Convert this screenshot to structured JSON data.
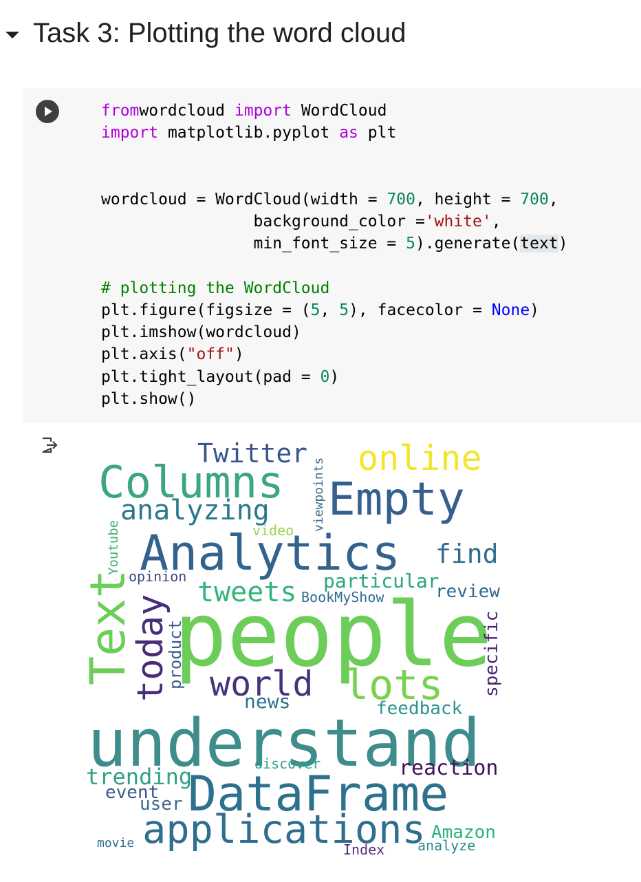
{
  "section": {
    "title": "Task 3: Plotting the word cloud"
  },
  "icons": {
    "toggle": "caret-down-icon",
    "run": "play-icon",
    "output": "output-icon"
  },
  "code_lines": [
    [
      [
        "kw",
        "from"
      ],
      [
        "",
        "wordcloud "
      ],
      [
        "kw",
        "import"
      ],
      [
        "",
        " WordCloud"
      ]
    ],
    [
      [
        "kw",
        "import"
      ],
      [
        "",
        " matplotlib.pyplot "
      ],
      [
        "kw",
        "as"
      ],
      [
        "",
        " plt"
      ]
    ],
    [],
    [],
    [
      [
        "",
        "wordcloud = WordCloud(width = "
      ],
      [
        "num",
        "700"
      ],
      [
        "",
        ", height = "
      ],
      [
        "num",
        "700"
      ],
      [
        "",
        ","
      ]
    ],
    [
      [
        "",
        "                background_color ="
      ],
      [
        "str",
        "'white'"
      ],
      [
        "",
        ","
      ]
    ],
    [
      [
        "",
        "                min_font_size = "
      ],
      [
        "num",
        "5"
      ],
      [
        "",
        ").generate("
      ],
      [
        "hl",
        "text"
      ],
      [
        "",
        ")"
      ]
    ],
    [],
    [
      [
        "cmt",
        "# plotting the WordCloud"
      ]
    ],
    [
      [
        "",
        "plt.figure(figsize = ("
      ],
      [
        "num",
        "5"
      ],
      [
        "",
        ", "
      ],
      [
        "num",
        "5"
      ],
      [
        "",
        "), facecolor = "
      ],
      [
        "const",
        "None"
      ],
      [
        "",
        ")"
      ]
    ],
    [
      [
        "",
        "plt.imshow(wordcloud)"
      ]
    ],
    [
      [
        "",
        "plt.axis("
      ],
      [
        "str",
        "\"off\""
      ],
      [
        "",
        ")"
      ]
    ],
    [
      [
        "",
        "plt.tight_layout(pad = "
      ],
      [
        "num",
        "0"
      ],
      [
        "",
        ")"
      ]
    ],
    [
      [
        "",
        "plt.show()"
      ]
    ]
  ],
  "wordcloud": {
    "words": [
      {
        "text": "people",
        "color": "#6ccd59"
      },
      {
        "text": "understand",
        "color": "#3e8c8c"
      },
      {
        "text": "Analytics",
        "color": "#33638d"
      },
      {
        "text": "Text",
        "color": "#6ccd59"
      },
      {
        "text": "Columns",
        "color": "#3ba67f"
      },
      {
        "text": "Empty",
        "color": "#35608d"
      },
      {
        "text": "DataFrame",
        "color": "#2d718e"
      },
      {
        "text": "applications",
        "color": "#2e6e8e"
      },
      {
        "text": "lots",
        "color": "#7ad151"
      },
      {
        "text": "online",
        "color": "#f4e42c"
      },
      {
        "text": "world",
        "color": "#46327e"
      },
      {
        "text": "today",
        "color": "#472c7a"
      },
      {
        "text": "analyzing",
        "color": "#2a788e"
      },
      {
        "text": "tweets",
        "color": "#33b37b"
      },
      {
        "text": "Twitter",
        "color": "#3a548c"
      },
      {
        "text": "find",
        "color": "#2f6c8e"
      },
      {
        "text": "particular",
        "color": "#2aa583"
      },
      {
        "text": "review",
        "color": "#306a8e"
      },
      {
        "text": "specific",
        "color": "#482475"
      },
      {
        "text": "reaction",
        "color": "#440e5c"
      },
      {
        "text": "trending",
        "color": "#30a183"
      },
      {
        "text": "feedback",
        "color": "#2b948c"
      },
      {
        "text": "news",
        "color": "#2d708e"
      },
      {
        "text": "Amazon",
        "color": "#2eb37c"
      },
      {
        "text": "event",
        "color": "#3a5a8c"
      },
      {
        "text": "user",
        "color": "#3f6a8e"
      },
      {
        "text": "analyze",
        "color": "#2a8c8c"
      },
      {
        "text": "Index",
        "color": "#5b2a7a"
      },
      {
        "text": "movie",
        "color": "#2a6f8e"
      },
      {
        "text": "discover",
        "color": "#30a08a"
      },
      {
        "text": "opinion",
        "color": "#404883"
      },
      {
        "text": "BookMyShow",
        "color": "#2f6c8e"
      },
      {
        "text": "product",
        "color": "#3b5c8c"
      },
      {
        "text": "video",
        "color": "#9ad34f"
      },
      {
        "text": "Youtube",
        "color": "#3fb274"
      },
      {
        "text": "viewpoints",
        "color": "#3b6e8e"
      }
    ]
  }
}
